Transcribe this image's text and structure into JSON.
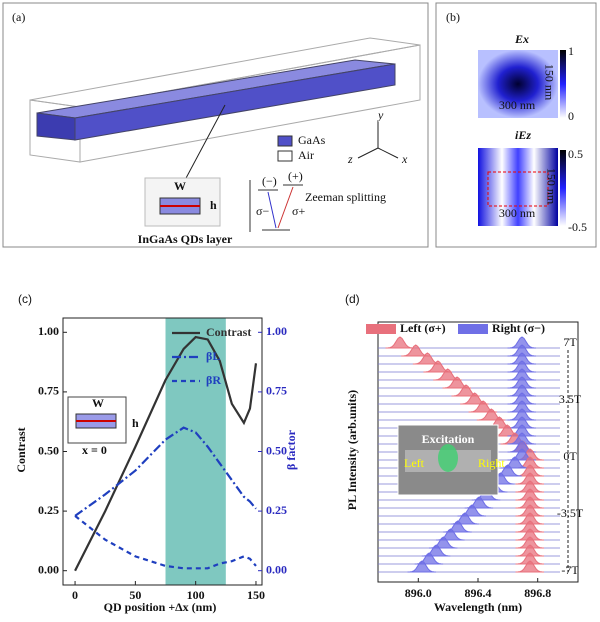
{
  "panel_a": {
    "label": "(a)",
    "legend_gaas": "GaAs",
    "legend_air": "Air",
    "axis_y": "y",
    "axis_z": "z",
    "axis_x": "x",
    "inset_w": "W",
    "inset_h": "h",
    "inset_caption": "InGaAs QDs layer",
    "zeeman": "Zeeman splitting",
    "level_minus": "(−)",
    "level_plus": "(+)",
    "sigma_minus": "σ−",
    "sigma_plus": "σ+"
  },
  "panel_b": {
    "label": "(b)",
    "ex_title": "Ex",
    "iez_title": "iEz",
    "ex_width": "300 nm",
    "ex_height": "150 nm",
    "iez_width": "300 nm",
    "iez_height": "150 nm",
    "ex_cbar_ticks": [
      1,
      0
    ],
    "iez_cbar_ticks": [
      0.5,
      -0.5
    ]
  },
  "chart_data": [
    {
      "type": "line",
      "label": "(c)",
      "xlabel": "QD position  +Δx (nm)",
      "ylabel": "Contrast",
      "y2label": "β factor",
      "xlim": [
        -10,
        155
      ],
      "xticks": [
        0,
        50,
        100,
        150
      ],
      "ylim": [
        -0.06,
        1.06
      ],
      "yticks": [
        {
          "value": 0,
          "label": "0.00"
        },
        0.25,
        {
          "value": 0.5,
          "label": "0.50"
        },
        0.75,
        {
          "value": 1,
          "label": "1.00"
        }
      ],
      "y2lim": [
        -0.06,
        1.06
      ],
      "y2ticks": [
        {
          "value": 0,
          "label": "0.00"
        },
        0.25,
        {
          "value": 0.5,
          "label": "0.50"
        },
        0.75,
        {
          "value": 1,
          "label": "1.00"
        }
      ],
      "highlight_xrange": [
        75,
        125
      ],
      "highlight_color": "#7fc8c0",
      "x": [
        0,
        25,
        50,
        75,
        90,
        100,
        110,
        120,
        130,
        140,
        145,
        150
      ],
      "series": [
        {
          "name": "Contrast",
          "color": "#333333",
          "dash": "solid",
          "values": [
            0,
            0.25,
            0.52,
            0.8,
            0.93,
            0.98,
            0.97,
            0.88,
            0.7,
            0.62,
            0.68,
            0.87
          ]
        },
        {
          "name": "βL",
          "color": "#1f3fbf",
          "dash": "dashdot",
          "axis": "y2",
          "values": [
            0.23,
            0.32,
            0.42,
            0.55,
            0.6,
            0.58,
            0.52,
            0.45,
            0.38,
            0.31,
            0.29,
            0.26
          ]
        },
        {
          "name": "βR",
          "color": "#1f3fbf",
          "dash": "dashed",
          "axis": "y2",
          "values": [
            0.23,
            0.13,
            0.06,
            0.02,
            0.01,
            0.01,
            0.01,
            0.03,
            0.04,
            0.06,
            0.05,
            0.02
          ]
        }
      ],
      "inset": {
        "w": "W",
        "h": "h",
        "caption": "x = 0"
      }
    },
    {
      "type": "spectra",
      "label": "(d)",
      "xlabel": "Wavelength (nm)",
      "ylabel": "PL Intensity (arb.units)",
      "xlim": [
        895.73,
        897.07
      ],
      "xticks": [
        {
          "value": 896,
          "label": "896.0"
        },
        896.4,
        896.8
      ],
      "series": [
        {
          "name": "Left (σ+)",
          "color": "#e8707c"
        },
        {
          "name": "Right (σ−)",
          "color": "#6f6fe6"
        }
      ],
      "field_labels": [
        "7T",
        "3.5T",
        "0T",
        "-3.5T",
        "-7T"
      ],
      "inset": {
        "excitation": "Excitation",
        "left": "Left",
        "right": "Right"
      }
    }
  ]
}
